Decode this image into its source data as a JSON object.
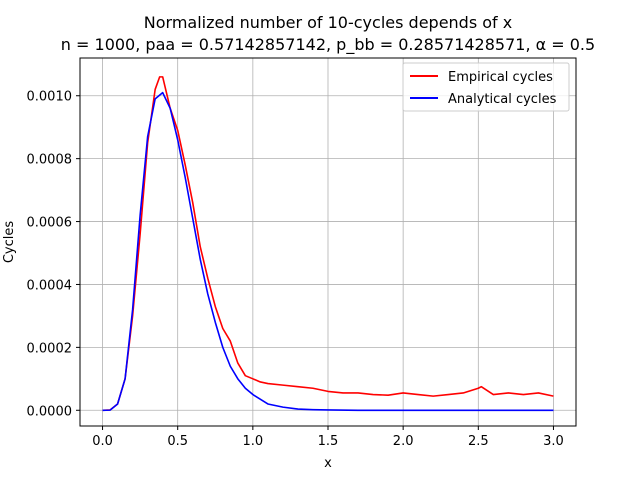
{
  "chart_data": {
    "type": "line",
    "title_line1": "Normalized number of 10-cycles depends of x",
    "title_line2": "n = 1000, paa = 0.57142857142, p_bb = 0.28571428571, α = 0.5",
    "xlabel": "x",
    "ylabel": "Cycles",
    "xlim": [
      -0.15,
      3.15
    ],
    "ylim": [
      -5e-05,
      0.00112
    ],
    "xticks": [
      0.0,
      0.5,
      1.0,
      1.5,
      2.0,
      2.5,
      3.0
    ],
    "xtick_labels": [
      "0.0",
      "0.5",
      "1.0",
      "1.5",
      "2.0",
      "2.5",
      "3.0"
    ],
    "yticks": [
      0.0,
      0.0002,
      0.0004,
      0.0006,
      0.0008,
      0.001
    ],
    "ytick_labels": [
      "0.0000",
      "0.0002",
      "0.0004",
      "0.0006",
      "0.0008",
      "0.0010"
    ],
    "grid": true,
    "legend_position": "top-right",
    "series": [
      {
        "name": "Empirical cycles",
        "color": "#ff0000",
        "x": [
          0.0,
          0.05,
          0.1,
          0.15,
          0.2,
          0.25,
          0.3,
          0.35,
          0.38,
          0.4,
          0.42,
          0.45,
          0.5,
          0.55,
          0.6,
          0.65,
          0.7,
          0.75,
          0.8,
          0.85,
          0.9,
          0.95,
          1.0,
          1.05,
          1.1,
          1.2,
          1.3,
          1.4,
          1.5,
          1.6,
          1.7,
          1.8,
          1.9,
          2.0,
          2.1,
          2.2,
          2.3,
          2.4,
          2.5,
          2.52,
          2.6,
          2.7,
          2.8,
          2.9,
          3.0
        ],
        "y": [
          0.0,
          1e-06,
          2e-05,
          0.0001,
          0.0003,
          0.00056,
          0.00085,
          0.00102,
          0.00106,
          0.00106,
          0.00102,
          0.00096,
          0.00089,
          0.00078,
          0.00066,
          0.00052,
          0.00042,
          0.00033,
          0.00026,
          0.00022,
          0.00015,
          0.00011,
          0.0001,
          9e-05,
          8.5e-05,
          8e-05,
          7.5e-05,
          7e-05,
          6e-05,
          5.5e-05,
          5.5e-05,
          5e-05,
          4.8e-05,
          5.5e-05,
          5e-05,
          4.5e-05,
          5e-05,
          5.5e-05,
          7e-05,
          7.5e-05,
          5e-05,
          5.5e-05,
          5e-05,
          5.5e-05,
          4.5e-05
        ]
      },
      {
        "name": "Analytical cycles",
        "color": "#0000ff",
        "x": [
          0.0,
          0.05,
          0.1,
          0.15,
          0.2,
          0.25,
          0.3,
          0.35,
          0.4,
          0.45,
          0.5,
          0.55,
          0.6,
          0.65,
          0.7,
          0.75,
          0.8,
          0.85,
          0.9,
          0.95,
          1.0,
          1.1,
          1.2,
          1.3,
          1.4,
          1.5,
          1.7,
          2.0,
          2.5,
          3.0
        ],
        "y": [
          0.0,
          5e-07,
          2e-05,
          0.0001,
          0.00032,
          0.00062,
          0.00087,
          0.00099,
          0.00101,
          0.00096,
          0.00086,
          0.00074,
          0.00061,
          0.00048,
          0.00037,
          0.00028,
          0.0002,
          0.00014,
          0.0001,
          7e-05,
          5e-05,
          2e-05,
          1e-05,
          4e-06,
          2e-06,
          1e-06,
          0.0,
          0.0,
          0.0,
          0.0
        ]
      }
    ]
  }
}
